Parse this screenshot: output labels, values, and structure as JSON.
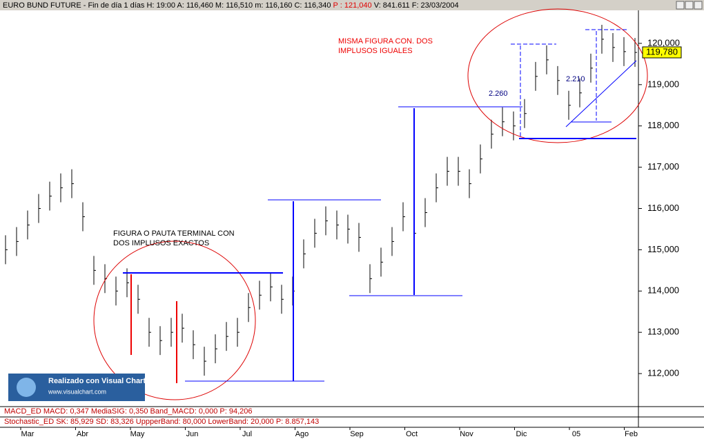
{
  "header": {
    "title": "EURO BUND FUTURE - Fin de día 1 días H: 19:00 A: 116,460 M: 116,510 m: 116,160 C: 116,340",
    "price": "P : 121,040",
    "rest": "V: 841.611 F: 23/03/2004"
  },
  "chart_data": {
    "type": "ohlc",
    "high": [
      115350,
      115550,
      115950,
      116350,
      116650,
      116850,
      116950,
      116150,
      114850,
      114650,
      114350,
      114550,
      114150,
      113350,
      113150,
      113350,
      113450,
      113050,
      112650,
      112950,
      113250,
      113350,
      113950,
      114250,
      114450,
      114150,
      114350,
      115250,
      115750,
      116050,
      115950,
      115850,
      115650,
      114650,
      115050,
      115550,
      116150,
      115750,
      116250,
      116850,
      117250,
      117250,
      116950,
      117550,
      118150,
      118450,
      118350,
      118650,
      119550,
      119950,
      119450,
      118850,
      119150,
      119750,
      120450,
      120250,
      120150,
      120130
    ],
    "low": [
      114650,
      114850,
      115250,
      115650,
      115950,
      116150,
      116250,
      115450,
      114150,
      113950,
      113650,
      113850,
      113450,
      112650,
      112450,
      112650,
      112750,
      112350,
      111950,
      112250,
      112550,
      112650,
      113250,
      113550,
      113750,
      113450,
      113650,
      114550,
      115050,
      115350,
      115250,
      115150,
      114950,
      113950,
      114350,
      114850,
      115450,
      115050,
      115550,
      116150,
      116550,
      116550,
      116250,
      116850,
      117450,
      117750,
      117650,
      117950,
      118850,
      119250,
      118750,
      118150,
      118450,
      119050,
      119750,
      119550,
      119450,
      119430
    ],
    "close": [
      115000,
      115200,
      115600,
      116000,
      116300,
      116500,
      116600,
      115800,
      114500,
      114300,
      114000,
      114200,
      113800,
      113000,
      112800,
      113000,
      113100,
      112700,
      112300,
      112600,
      112900,
      113000,
      113600,
      113900,
      114100,
      113800,
      114000,
      114900,
      115400,
      115700,
      115600,
      115500,
      115300,
      114300,
      114700,
      115200,
      115800,
      115400,
      115900,
      116500,
      116900,
      116900,
      116600,
      117200,
      117800,
      118100,
      118000,
      118300,
      119200,
      119600,
      119100,
      118500,
      118800,
      119400,
      120100,
      119900,
      119800,
      119780
    ],
    "color": "#000000",
    "ylim": [
      111200,
      120800
    ],
    "yticks": [
      {
        "value": 112000,
        "label": "112,000"
      },
      {
        "value": 113000,
        "label": "113,000"
      },
      {
        "value": 114000,
        "label": "114,000"
      },
      {
        "value": 115000,
        "label": "115,000"
      },
      {
        "value": 116000,
        "label": "116,000"
      },
      {
        "value": 117000,
        "label": "117,000"
      },
      {
        "value": 118000,
        "label": "118,000"
      },
      {
        "value": 119000,
        "label": "119,000"
      },
      {
        "value": 120000,
        "label": "120,000"
      }
    ],
    "last_price": "119,780",
    "months": [
      "Mar",
      "Abr",
      "May",
      "Jun",
      "Jul",
      "Ago",
      "Sep",
      "Oct",
      "Nov",
      "Dic",
      "05",
      "Feb"
    ],
    "annotations": {
      "top_1": "MISMA FIGURA CON. DOS",
      "top_2": "IMPLUSOS IGUALES",
      "left_1": "FIGURA O PAUTA TERMINAL CON",
      "left_2": "DOS IMPLUSOS EXACTOS",
      "m1": "2.260",
      "m2": "2.210"
    }
  },
  "logo": {
    "title": "Realizado con Visual Chart",
    "url": "www.visualchart.com"
  },
  "indicators": {
    "macd": "MACD_ED  MACD: 0,347  MediaSIG: 0,350  Band_MACD: 0,000  P: 94,206",
    "stoch": "Stochastic_ED  SK: 85,929  SD: 83,326  UppperBand: 80,000  LowerBand: 20,000  P: 8.857,143"
  }
}
